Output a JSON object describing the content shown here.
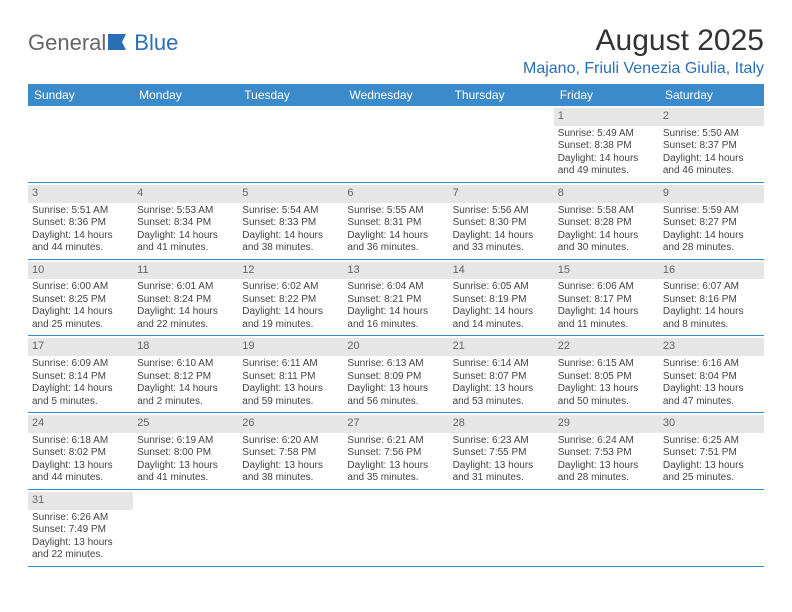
{
  "brand": {
    "part1": "General",
    "part2": "Blue"
  },
  "title": "August 2025",
  "location": "Majano, Friuli Venezia Giulia, Italy",
  "colors": {
    "header_bg": "#3b8bca",
    "header_text": "#ffffff",
    "daynum_bg": "#e6e6e6",
    "row_border": "#3b8bca",
    "logo_blue": "#2a6fb5",
    "body_text": "#444444"
  },
  "day_names": [
    "Sunday",
    "Monday",
    "Tuesday",
    "Wednesday",
    "Thursday",
    "Friday",
    "Saturday"
  ],
  "weeks": [
    [
      {
        "day": "",
        "empty": true
      },
      {
        "day": "",
        "empty": true
      },
      {
        "day": "",
        "empty": true
      },
      {
        "day": "",
        "empty": true
      },
      {
        "day": "",
        "empty": true
      },
      {
        "day": "1",
        "sunrise": "Sunrise: 5:49 AM",
        "sunset": "Sunset: 8:38 PM",
        "daylight1": "Daylight: 14 hours",
        "daylight2": "and 49 minutes."
      },
      {
        "day": "2",
        "sunrise": "Sunrise: 5:50 AM",
        "sunset": "Sunset: 8:37 PM",
        "daylight1": "Daylight: 14 hours",
        "daylight2": "and 46 minutes."
      }
    ],
    [
      {
        "day": "3",
        "sunrise": "Sunrise: 5:51 AM",
        "sunset": "Sunset: 8:36 PM",
        "daylight1": "Daylight: 14 hours",
        "daylight2": "and 44 minutes."
      },
      {
        "day": "4",
        "sunrise": "Sunrise: 5:53 AM",
        "sunset": "Sunset: 8:34 PM",
        "daylight1": "Daylight: 14 hours",
        "daylight2": "and 41 minutes."
      },
      {
        "day": "5",
        "sunrise": "Sunrise: 5:54 AM",
        "sunset": "Sunset: 8:33 PM",
        "daylight1": "Daylight: 14 hours",
        "daylight2": "and 38 minutes."
      },
      {
        "day": "6",
        "sunrise": "Sunrise: 5:55 AM",
        "sunset": "Sunset: 8:31 PM",
        "daylight1": "Daylight: 14 hours",
        "daylight2": "and 36 minutes."
      },
      {
        "day": "7",
        "sunrise": "Sunrise: 5:56 AM",
        "sunset": "Sunset: 8:30 PM",
        "daylight1": "Daylight: 14 hours",
        "daylight2": "and 33 minutes."
      },
      {
        "day": "8",
        "sunrise": "Sunrise: 5:58 AM",
        "sunset": "Sunset: 8:28 PM",
        "daylight1": "Daylight: 14 hours",
        "daylight2": "and 30 minutes."
      },
      {
        "day": "9",
        "sunrise": "Sunrise: 5:59 AM",
        "sunset": "Sunset: 8:27 PM",
        "daylight1": "Daylight: 14 hours",
        "daylight2": "and 28 minutes."
      }
    ],
    [
      {
        "day": "10",
        "sunrise": "Sunrise: 6:00 AM",
        "sunset": "Sunset: 8:25 PM",
        "daylight1": "Daylight: 14 hours",
        "daylight2": "and 25 minutes."
      },
      {
        "day": "11",
        "sunrise": "Sunrise: 6:01 AM",
        "sunset": "Sunset: 8:24 PM",
        "daylight1": "Daylight: 14 hours",
        "daylight2": "and 22 minutes."
      },
      {
        "day": "12",
        "sunrise": "Sunrise: 6:02 AM",
        "sunset": "Sunset: 8:22 PM",
        "daylight1": "Daylight: 14 hours",
        "daylight2": "and 19 minutes."
      },
      {
        "day": "13",
        "sunrise": "Sunrise: 6:04 AM",
        "sunset": "Sunset: 8:21 PM",
        "daylight1": "Daylight: 14 hours",
        "daylight2": "and 16 minutes."
      },
      {
        "day": "14",
        "sunrise": "Sunrise: 6:05 AM",
        "sunset": "Sunset: 8:19 PM",
        "daylight1": "Daylight: 14 hours",
        "daylight2": "and 14 minutes."
      },
      {
        "day": "15",
        "sunrise": "Sunrise: 6:06 AM",
        "sunset": "Sunset: 8:17 PM",
        "daylight1": "Daylight: 14 hours",
        "daylight2": "and 11 minutes."
      },
      {
        "day": "16",
        "sunrise": "Sunrise: 6:07 AM",
        "sunset": "Sunset: 8:16 PM",
        "daylight1": "Daylight: 14 hours",
        "daylight2": "and 8 minutes."
      }
    ],
    [
      {
        "day": "17",
        "sunrise": "Sunrise: 6:09 AM",
        "sunset": "Sunset: 8:14 PM",
        "daylight1": "Daylight: 14 hours",
        "daylight2": "and 5 minutes."
      },
      {
        "day": "18",
        "sunrise": "Sunrise: 6:10 AM",
        "sunset": "Sunset: 8:12 PM",
        "daylight1": "Daylight: 14 hours",
        "daylight2": "and 2 minutes."
      },
      {
        "day": "19",
        "sunrise": "Sunrise: 6:11 AM",
        "sunset": "Sunset: 8:11 PM",
        "daylight1": "Daylight: 13 hours",
        "daylight2": "and 59 minutes."
      },
      {
        "day": "20",
        "sunrise": "Sunrise: 6:13 AM",
        "sunset": "Sunset: 8:09 PM",
        "daylight1": "Daylight: 13 hours",
        "daylight2": "and 56 minutes."
      },
      {
        "day": "21",
        "sunrise": "Sunrise: 6:14 AM",
        "sunset": "Sunset: 8:07 PM",
        "daylight1": "Daylight: 13 hours",
        "daylight2": "and 53 minutes."
      },
      {
        "day": "22",
        "sunrise": "Sunrise: 6:15 AM",
        "sunset": "Sunset: 8:05 PM",
        "daylight1": "Daylight: 13 hours",
        "daylight2": "and 50 minutes."
      },
      {
        "day": "23",
        "sunrise": "Sunrise: 6:16 AM",
        "sunset": "Sunset: 8:04 PM",
        "daylight1": "Daylight: 13 hours",
        "daylight2": "and 47 minutes."
      }
    ],
    [
      {
        "day": "24",
        "sunrise": "Sunrise: 6:18 AM",
        "sunset": "Sunset: 8:02 PM",
        "daylight1": "Daylight: 13 hours",
        "daylight2": "and 44 minutes."
      },
      {
        "day": "25",
        "sunrise": "Sunrise: 6:19 AM",
        "sunset": "Sunset: 8:00 PM",
        "daylight1": "Daylight: 13 hours",
        "daylight2": "and 41 minutes."
      },
      {
        "day": "26",
        "sunrise": "Sunrise: 6:20 AM",
        "sunset": "Sunset: 7:58 PM",
        "daylight1": "Daylight: 13 hours",
        "daylight2": "and 38 minutes."
      },
      {
        "day": "27",
        "sunrise": "Sunrise: 6:21 AM",
        "sunset": "Sunset: 7:56 PM",
        "daylight1": "Daylight: 13 hours",
        "daylight2": "and 35 minutes."
      },
      {
        "day": "28",
        "sunrise": "Sunrise: 6:23 AM",
        "sunset": "Sunset: 7:55 PM",
        "daylight1": "Daylight: 13 hours",
        "daylight2": "and 31 minutes."
      },
      {
        "day": "29",
        "sunrise": "Sunrise: 6:24 AM",
        "sunset": "Sunset: 7:53 PM",
        "daylight1": "Daylight: 13 hours",
        "daylight2": "and 28 minutes."
      },
      {
        "day": "30",
        "sunrise": "Sunrise: 6:25 AM",
        "sunset": "Sunset: 7:51 PM",
        "daylight1": "Daylight: 13 hours",
        "daylight2": "and 25 minutes."
      }
    ],
    [
      {
        "day": "31",
        "sunrise": "Sunrise: 6:26 AM",
        "sunset": "Sunset: 7:49 PM",
        "daylight1": "Daylight: 13 hours",
        "daylight2": "and 22 minutes."
      },
      {
        "day": "",
        "empty": true
      },
      {
        "day": "",
        "empty": true
      },
      {
        "day": "",
        "empty": true
      },
      {
        "day": "",
        "empty": true
      },
      {
        "day": "",
        "empty": true
      },
      {
        "day": "",
        "empty": true
      }
    ]
  ]
}
